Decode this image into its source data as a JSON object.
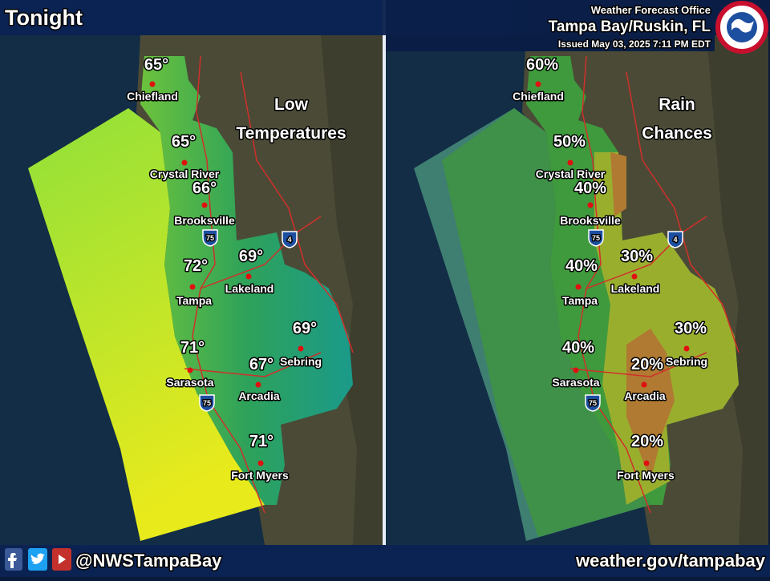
{
  "header": {
    "title": "Tonight",
    "office": "Weather Forecast Office",
    "location": "Tampa Bay/Ruskin, FL",
    "issued": "Issued May 03, 2025 7:11 PM EDT"
  },
  "panels": [
    {
      "title_lines": [
        "Low",
        "Temperatures"
      ],
      "values": [
        "65°",
        "65°",
        "66°",
        "72°",
        "69°",
        "69°",
        "71°",
        "67°",
        "71°"
      ]
    },
    {
      "title_lines": [
        "Rain",
        "Chances"
      ],
      "values": [
        "60%",
        "50%",
        "40%",
        "40%",
        "30%",
        "30%",
        "40%",
        "20%",
        "20%"
      ]
    }
  ],
  "cities": [
    "Chiefland",
    "Crystal River",
    "Brooksville",
    "Tampa",
    "Lakeland",
    "Sebring",
    "Sarasota",
    "Arcadia",
    "Fort Myers"
  ],
  "interstates": [
    "75",
    "4"
  ],
  "footer": {
    "handle": "@NWSTampaBay",
    "website": "weather.gov/tampabay"
  }
}
